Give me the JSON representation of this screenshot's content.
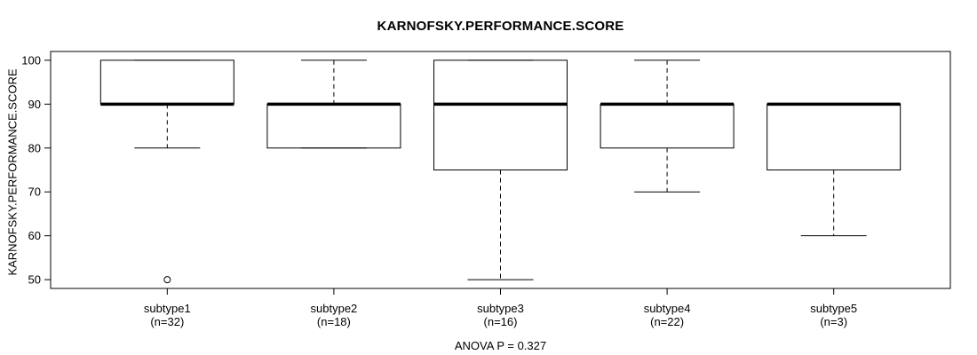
{
  "chart_data": {
    "type": "boxplot",
    "title": "KARNOFSKY.PERFORMANCE.SCORE",
    "ylabel": "KARNOFSKY.PERFORMANCE.SCORE",
    "xlabel": "",
    "annotation": "ANOVA P = 0.327",
    "yticks": [
      50,
      60,
      70,
      80,
      90,
      100
    ],
    "ylim": [
      48,
      102
    ],
    "grid": false,
    "legend": false,
    "categories": [
      "subtype1",
      "subtype2",
      "subtype3",
      "subtype4",
      "subtype5"
    ],
    "category_sublabels": [
      "(n=32)",
      "(n=18)",
      "(n=16)",
      "(n=22)",
      "(n=3)"
    ],
    "series": [
      {
        "name": "subtype1",
        "n": 32,
        "whisker_low": 80,
        "q1": 90,
        "median": 90,
        "q3": 100,
        "whisker_high": 100,
        "outliers": [
          50
        ]
      },
      {
        "name": "subtype2",
        "n": 18,
        "whisker_low": 80,
        "q1": 80,
        "median": 90,
        "q3": 90,
        "whisker_high": 100,
        "outliers": []
      },
      {
        "name": "subtype3",
        "n": 16,
        "whisker_low": 50,
        "q1": 75,
        "median": 90,
        "q3": 100,
        "whisker_high": 100,
        "outliers": []
      },
      {
        "name": "subtype4",
        "n": 22,
        "whisker_low": 70,
        "q1": 80,
        "median": 90,
        "q3": 90,
        "whisker_high": 100,
        "outliers": []
      },
      {
        "name": "subtype5",
        "n": 3,
        "whisker_low": 60,
        "q1": 75,
        "median": 90,
        "q3": 90,
        "whisker_high": 90,
        "outliers": []
      }
    ],
    "colors": {
      "line": "#000000",
      "box_fill": "#ffffff",
      "background": "#ffffff",
      "text": "#000000"
    }
  }
}
